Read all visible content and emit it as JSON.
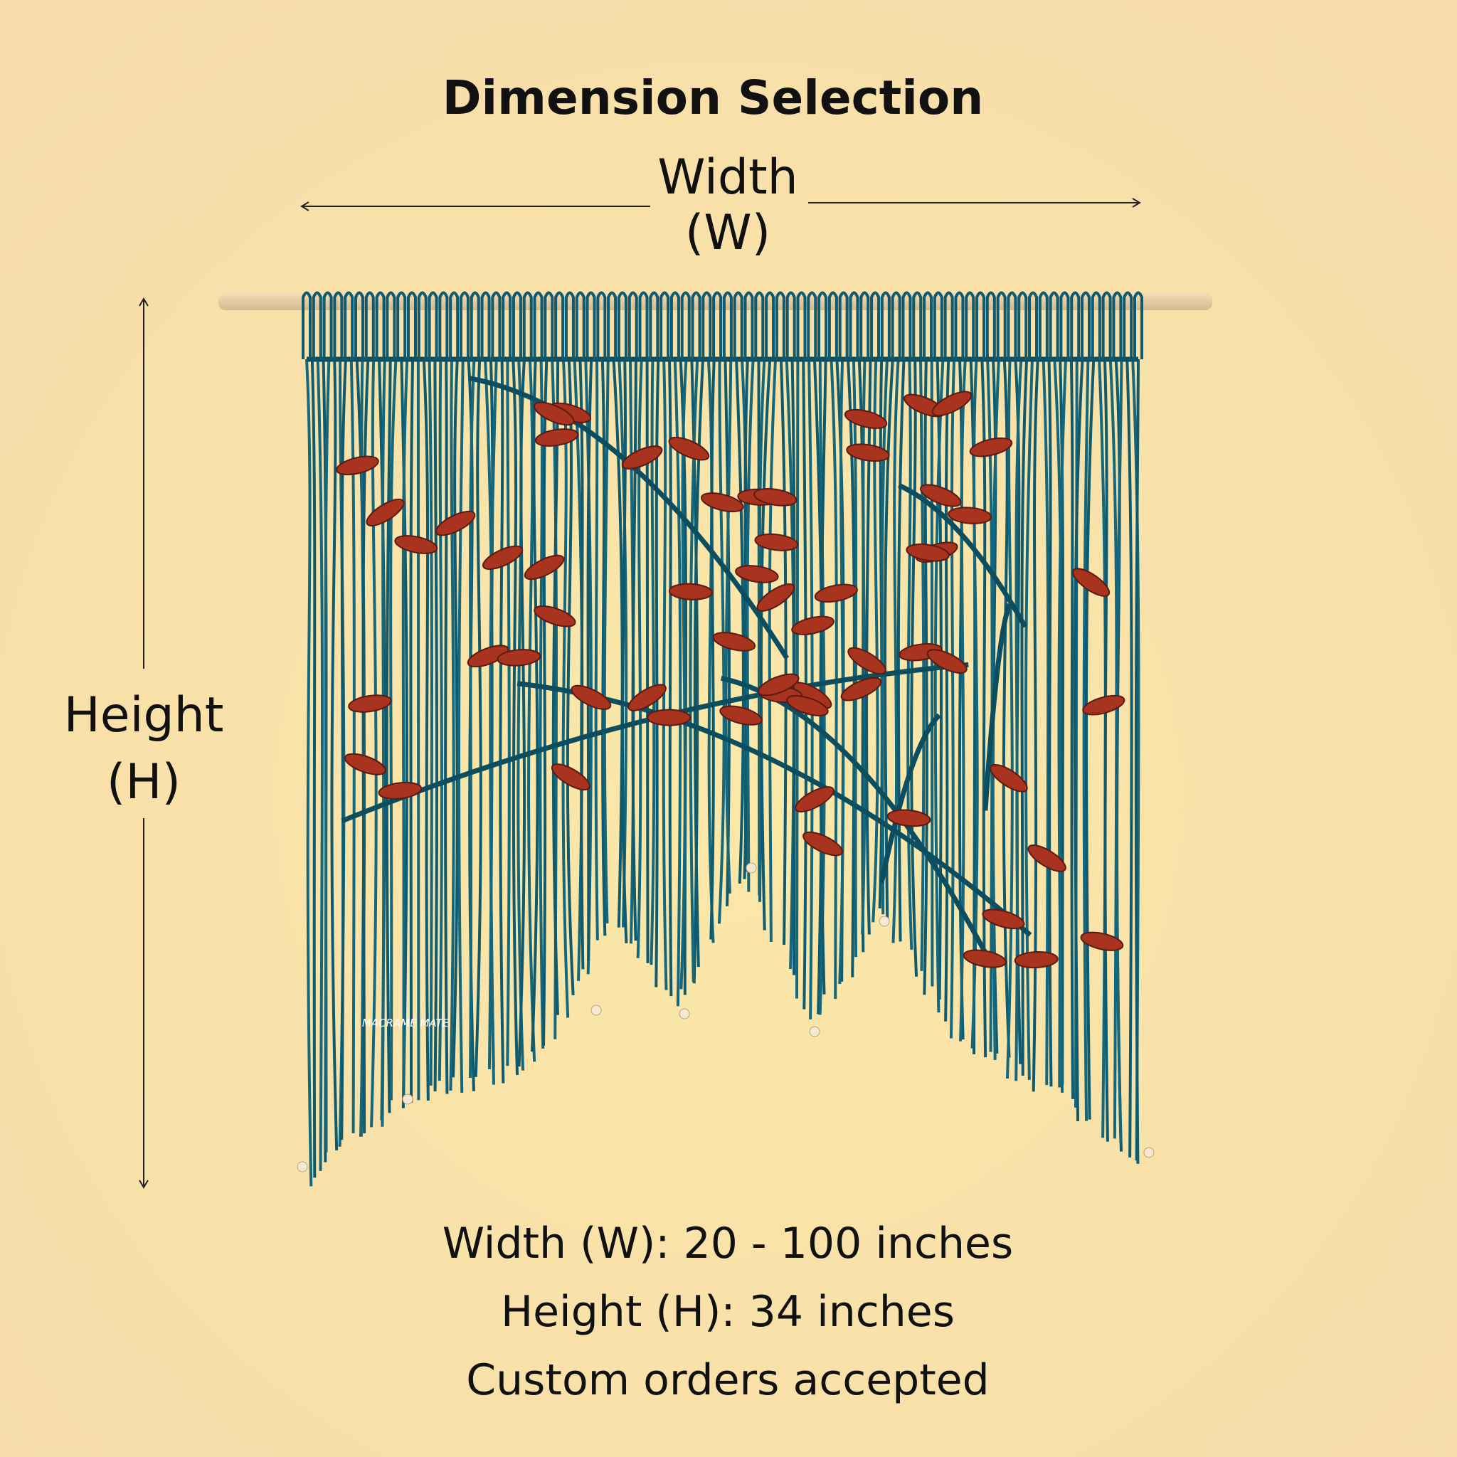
{
  "header": {
    "title": "Dimension Selection"
  },
  "diagram": {
    "width_label": "Width",
    "width_symbol": "(W)",
    "height_label": "Height",
    "height_symbol": "(H)"
  },
  "logo": {
    "text": "MACRAME MATE"
  },
  "specs": [
    "Width (W): 20 - 100 inches",
    "Height (H): 34 inches",
    "Custom orders accepted"
  ]
}
